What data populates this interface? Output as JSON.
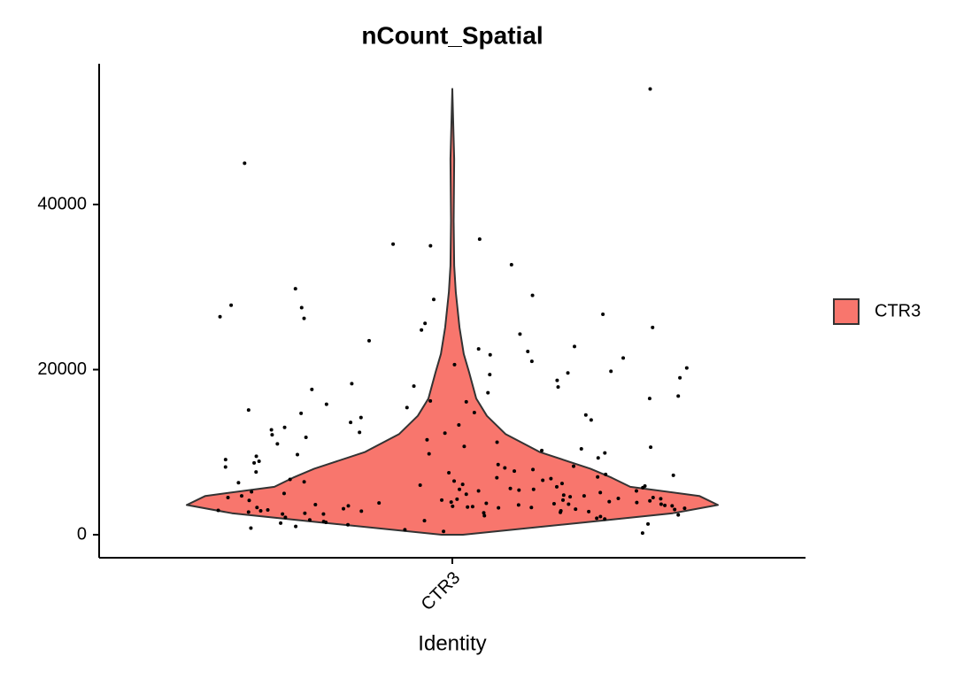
{
  "chart_data": {
    "type": "violin",
    "title": "nCount_Spatial",
    "x_label": "Identity",
    "categories": [
      "CTR3"
    ],
    "series": [
      {
        "name": "CTR3",
        "color": "#F8766D",
        "values": [
          54000,
          45000,
          35800,
          35200,
          35000,
          32700,
          29800,
          29000,
          28500,
          27800,
          27500,
          26700,
          26400,
          26200,
          25600,
          25100,
          24800,
          24300,
          23500,
          22800,
          22500,
          22200,
          21800,
          21400,
          21000,
          20600,
          20200,
          19800,
          19400,
          19000,
          18700,
          18300,
          18000,
          17600,
          17200,
          16800,
          16500,
          16100,
          15800,
          15400,
          15100,
          14800,
          14500,
          14200,
          13900,
          13600,
          13300,
          13000,
          12700,
          12400,
          12100,
          11800,
          11500,
          11200,
          11000,
          10700,
          10400,
          10200,
          9900,
          9700,
          9500,
          9300,
          9100,
          8900,
          8700,
          8500,
          8300,
          8100,
          7900,
          7700,
          7500,
          7300,
          7200,
          7000,
          6900,
          6700,
          6600,
          6400,
          6300,
          6200,
          6000,
          5900,
          5800,
          5700,
          5600,
          5500,
          5400,
          5300,
          5200,
          5100,
          5000,
          4900,
          4800,
          4700,
          4600,
          4500,
          4400,
          4350,
          4300,
          4200,
          4150,
          4100,
          4000,
          3950,
          3900,
          3850,
          3800,
          3750,
          3700,
          3650,
          3600,
          3550,
          3500,
          3450,
          3400,
          3350,
          3300,
          3250,
          3200,
          3150,
          3100,
          3050,
          3000,
          2950,
          2900,
          2850,
          2800,
          2750,
          2700,
          2650,
          2600,
          2500,
          2400,
          2300,
          2200,
          2100,
          2000,
          1900,
          1800,
          1700,
          1600,
          1500,
          1400,
          1300,
          1200,
          1000,
          800,
          600,
          400,
          200,
          8200,
          7600,
          6800,
          6100,
          5300,
          4700,
          4200,
          3700,
          3300,
          2900,
          9800,
          10600,
          12300,
          14700,
          16200,
          17900,
          19600,
          6500,
          5500,
          4500,
          3500,
          2500
        ]
      }
    ],
    "violin": {
      "y": [
        0,
        1500,
        2600,
        3600,
        4700,
        5800,
        6900,
        8000,
        10000,
        12200,
        14400,
        16500,
        19700,
        21900,
        25100,
        29400,
        32600,
        38000,
        45500,
        54000
      ],
      "width": [
        0.04,
        0.5,
        0.83,
        1.0,
        0.93,
        0.67,
        0.6,
        0.52,
        0.33,
        0.2,
        0.13,
        0.09,
        0.063,
        0.043,
        0.027,
        0.013,
        0.007,
        0.005,
        0.007,
        0
      ]
    },
    "point_color": "#000000",
    "ylim": [
      -2790,
      57050
    ],
    "yticks": [
      0,
      20000,
      40000
    ],
    "legend": "right"
  }
}
